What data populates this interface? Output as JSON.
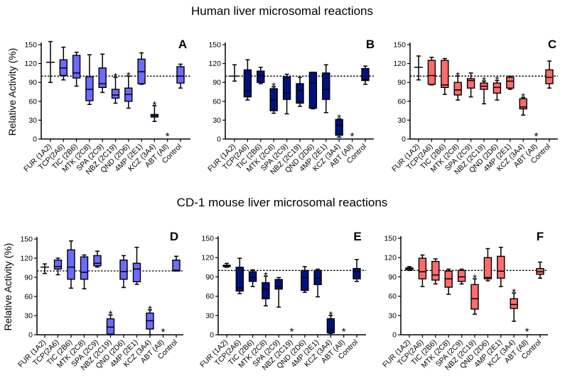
{
  "titles": {
    "human": "Human liver microsomal reactions",
    "mouse": "CD-1 mouse liver microsomal reactions"
  },
  "ylabel": "Relative Activity (%)",
  "reference_line": 100,
  "colors": {
    "light_blue": "#6b6bff",
    "navy": "#00127d",
    "salmon": "#ff6b6b"
  },
  "chart_data": [
    {
      "type": "box",
      "panel": "A",
      "group": "human",
      "color": "#6b6bff",
      "show_ylabel": true,
      "ylim": [
        0,
        150
      ],
      "yticks": [
        0,
        30,
        60,
        90,
        120,
        150
      ],
      "categories": [
        "FUR (1A2)",
        "TCP(2A6)",
        "TIC (2B6)",
        "MTK (2C8)",
        "SPA (2C9)",
        "NBZ (2C19)",
        "QND (2D6)",
        "4MP (2E1)",
        "KCZ (3A4)",
        "ABT (All)",
        "Control"
      ],
      "boxes": [
        [
          90,
          122,
          122,
          122,
          155
        ],
        [
          94,
          101,
          113,
          126,
          146
        ],
        [
          84,
          97,
          105,
          133,
          138
        ],
        [
          55,
          61,
          79,
          99,
          134
        ],
        [
          74,
          82,
          88,
          113,
          135
        ],
        [
          57,
          65,
          70,
          79,
          98
        ],
        [
          49,
          60,
          71,
          81,
          100
        ],
        [
          87,
          88,
          107,
          127,
          137
        ],
        [
          28,
          35,
          37,
          39,
          53
        ],
        null,
        [
          81,
          89,
          100,
          115,
          119
        ]
      ],
      "significant": [
        false,
        false,
        false,
        false,
        false,
        true,
        true,
        false,
        true,
        true,
        false
      ]
    },
    {
      "type": "box",
      "panel": "B",
      "group": "human",
      "color": "#00127d",
      "show_ylabel": false,
      "ylim": [
        0,
        150
      ],
      "yticks": [
        0,
        30,
        60,
        90,
        120,
        150
      ],
      "categories": [
        "FUR (1A2)",
        "TCP(2A6)",
        "TIC (2B6)",
        "MTK (2C8)",
        "SPA (2C9)",
        "NBZ (2C19)",
        "QND (2D6)",
        "4MP (2E1)",
        "KCZ (3A4)",
        "ABT (All)",
        "Control"
      ],
      "boxes": [
        [
          92,
          100,
          100,
          100,
          118
        ],
        [
          62,
          67,
          77,
          110,
          126
        ],
        [
          88,
          90,
          101,
          108,
          114
        ],
        [
          41,
          45,
          62,
          80,
          83
        ],
        [
          40,
          63,
          73,
          99,
          103
        ],
        [
          52,
          57,
          77,
          88,
          98
        ],
        [
          48,
          49,
          89,
          106,
          106
        ],
        [
          42,
          63,
          79,
          105,
          118
        ],
        [
          3,
          6,
          22,
          31,
          32
        ],
        null,
        [
          87,
          93,
          95,
          112,
          116
        ]
      ],
      "significant": [
        false,
        false,
        false,
        true,
        false,
        false,
        false,
        false,
        true,
        true,
        false
      ]
    },
    {
      "type": "box",
      "panel": "C",
      "group": "human",
      "color": "#ff6b6b",
      "show_ylabel": false,
      "ylim": [
        0,
        150
      ],
      "yticks": [
        0,
        30,
        60,
        90,
        120,
        150
      ],
      "categories": [
        "FUR (1A2)",
        "TCP(2A6)",
        "TIC (2B6)",
        "MTK (2C8)",
        "SPA (2C9)",
        "NBZ (2C19)",
        "QND (2D6)",
        "4MP (2E1)",
        "KCZ (3A4)",
        "ABT (All)",
        "Control"
      ],
      "boxes": [
        [
          94,
          114,
          114,
          114,
          132
        ],
        [
          86,
          87,
          101,
          125,
          130
        ],
        [
          71,
          82,
          86,
          125,
          128
        ],
        [
          62,
          70,
          78,
          90,
          100
        ],
        [
          67,
          81,
          93,
          96,
          105
        ],
        [
          56,
          79,
          84,
          89,
          92
        ],
        [
          62,
          73,
          82,
          89,
          93
        ],
        [
          79,
          81,
          92,
          98,
          100
        ],
        [
          38,
          48,
          51,
          64,
          66
        ],
        null,
        [
          81,
          88,
          98,
          110,
          124
        ]
      ],
      "significant": [
        false,
        false,
        false,
        true,
        false,
        true,
        true,
        false,
        true,
        true,
        false
      ]
    },
    {
      "type": "box",
      "panel": "D",
      "group": "mouse",
      "color": "#6b6bff",
      "show_ylabel": true,
      "ylim": [
        0,
        150
      ],
      "yticks": [
        0,
        30,
        60,
        90,
        120,
        150
      ],
      "categories": [
        "FUR (1A2)",
        "TCP(2A6)",
        "TIC (2B6)",
        "MTK (2C8)",
        "SPA (2C9)",
        "NBZ (2C19)",
        "QND (2D6)",
        "4MP (2E1)",
        "KCZ (3A4)",
        "ABT (All)",
        "Control"
      ],
      "boxes": [
        [
          96,
          106,
          106,
          106,
          111
        ],
        [
          94,
          103,
          107,
          117,
          120
        ],
        [
          73,
          87,
          106,
          133,
          147
        ],
        [
          72,
          87,
          98,
          122,
          125
        ],
        [
          106,
          108,
          112,
          124,
          131
        ],
        [
          0,
          1,
          12,
          25,
          31
        ],
        [
          74,
          87,
          99,
          117,
          124
        ],
        [
          79,
          83,
          103,
          112,
          137
        ],
        [
          0,
          9,
          22,
          34,
          39
        ],
        null,
        [
          100,
          100,
          101,
          117,
          123
        ]
      ],
      "significant": [
        false,
        false,
        false,
        false,
        false,
        true,
        false,
        false,
        true,
        true,
        false
      ]
    },
    {
      "type": "box",
      "panel": "E",
      "group": "mouse",
      "color": "#00127d",
      "show_ylabel": false,
      "ylim": [
        0,
        150
      ],
      "yticks": [
        0,
        30,
        60,
        90,
        120,
        150
      ],
      "categories": [
        "FUR (1A2)",
        "TCP(2A6)",
        "TIC (2B6)",
        "MTK (2C8)",
        "SPA (2C9)",
        "NBZ (2C19)",
        "QND (2D6)",
        "4MP (2E1)",
        "KCZ (3A4)",
        "ABT (All)",
        "Control"
      ],
      "boxes": [
        [
          105,
          106,
          108,
          108,
          111
        ],
        [
          64,
          68,
          73,
          105,
          119
        ],
        [
          75,
          83,
          89,
          98,
          101
        ],
        [
          45,
          56,
          71,
          81,
          91
        ],
        [
          43,
          71,
          75,
          86,
          89
        ],
        null,
        [
          66,
          69,
          89,
          100,
          106
        ],
        [
          59,
          78,
          88,
          100,
          102
        ],
        [
          2,
          3,
          8,
          25,
          30
        ],
        null,
        [
          83,
          87,
          98,
          103,
          117
        ]
      ],
      "significant": [
        false,
        false,
        false,
        true,
        false,
        true,
        false,
        false,
        true,
        true,
        false
      ]
    },
    {
      "type": "box",
      "panel": "F",
      "group": "mouse",
      "color": "#ff6b6b",
      "show_ylabel": false,
      "ylim": [
        0,
        150
      ],
      "yticks": [
        0,
        30,
        60,
        90,
        120,
        150
      ],
      "categories": [
        "FUR (1A2)",
        "TCP(2A6)",
        "TIC (2B6)",
        "MTK (2C8)",
        "SPA (2C9)",
        "NBZ (2C19)",
        "QND (2D6)",
        "4MP (2E1)",
        "KCZ (3A4)",
        "ABT (All)",
        "Control"
      ],
      "boxes": [
        [
          100,
          101,
          103,
          104,
          106
        ],
        [
          75,
          87,
          98,
          119,
          124
        ],
        [
          79,
          85,
          93,
          114,
          118
        ],
        [
          63,
          74,
          87,
          99,
          102
        ],
        [
          79,
          83,
          90,
          100,
          102
        ],
        [
          32,
          40,
          56,
          78,
          87
        ],
        [
          84,
          87,
          89,
          120,
          134
        ],
        [
          75,
          88,
          99,
          122,
          136
        ],
        [
          21,
          41,
          47,
          56,
          65
        ],
        null,
        [
          88,
          94,
          98,
          103,
          113
        ]
      ],
      "significant": [
        false,
        false,
        false,
        false,
        false,
        true,
        false,
        false,
        true,
        true,
        false
      ]
    }
  ]
}
